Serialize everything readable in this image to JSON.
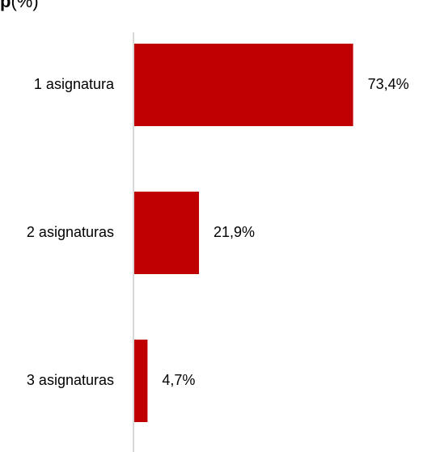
{
  "chart_data": {
    "type": "bar",
    "orientation": "horizontal",
    "title": {
      "bold": "p",
      "normal": "(%)"
    },
    "categories": [
      "1 asignatura",
      "2 asignaturas",
      "3 asignaturas"
    ],
    "values": [
      73.4,
      21.9,
      4.7
    ],
    "value_labels": [
      "73,4%",
      "21,9%",
      "4,7%"
    ],
    "xlim": [
      0,
      100
    ],
    "bar_color": "#C00000",
    "axis_color": "#D9D9D9",
    "grid": false,
    "legend": "none"
  }
}
